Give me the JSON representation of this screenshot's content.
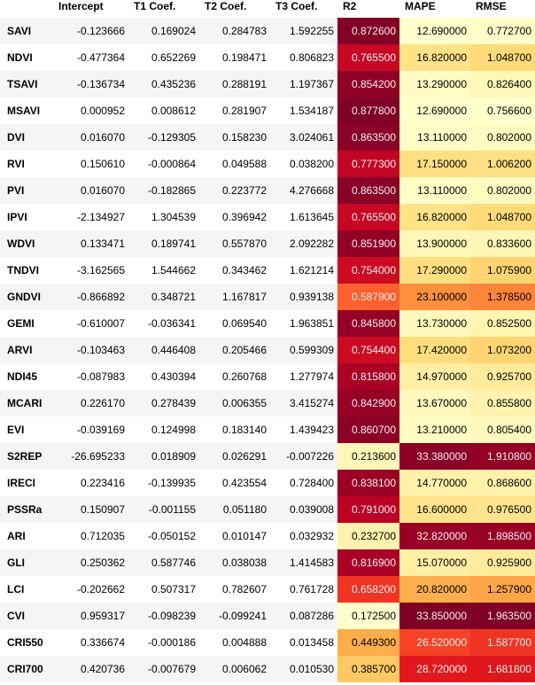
{
  "chart_data": {
    "type": "table",
    "columns": [
      "",
      "Intercept",
      "T1 Coef.",
      "T2 Coef.",
      "T3 Coef.",
      "R2",
      "MAPE",
      "RMSE"
    ],
    "heat_columns": [
      "R2",
      "MAPE",
      "RMSE"
    ],
    "heat_direction": {
      "R2": "high-dark",
      "MAPE": "high-dark",
      "RMSE": "high-dark"
    },
    "rows": [
      {
        "index": "SAVI",
        "values": [
          "-0.123666",
          "0.169024",
          "0.284783",
          "1.592255",
          "0.872600",
          "12.690000",
          "0.772700"
        ]
      },
      {
        "index": "NDVI",
        "values": [
          "-0.477364",
          "0.652269",
          "0.198471",
          "0.806823",
          "0.765500",
          "16.820000",
          "1.048700"
        ]
      },
      {
        "index": "TSAVI",
        "values": [
          "-0.136734",
          "0.435236",
          "0.288191",
          "1.197367",
          "0.854200",
          "13.290000",
          "0.826400"
        ]
      },
      {
        "index": "MSAVI",
        "values": [
          "0.000952",
          "0.008612",
          "0.281907",
          "1.534187",
          "0.877800",
          "12.690000",
          "0.756600"
        ]
      },
      {
        "index": "DVI",
        "values": [
          "0.016070",
          "-0.129305",
          "0.158230",
          "3.024061",
          "0.863500",
          "13.110000",
          "0.802000"
        ]
      },
      {
        "index": "RVI",
        "values": [
          "0.150610",
          "-0.000864",
          "0.049588",
          "0.038200",
          "0.777300",
          "17.150000",
          "1.006200"
        ]
      },
      {
        "index": "PVI",
        "values": [
          "0.016070",
          "-0.182865",
          "0.223772",
          "4.276668",
          "0.863500",
          "13.110000",
          "0.802000"
        ]
      },
      {
        "index": "IPVI",
        "values": [
          "-2.134927",
          "1.304539",
          "0.396942",
          "1.613645",
          "0.765500",
          "16.820000",
          "1.048700"
        ]
      },
      {
        "index": "WDVI",
        "values": [
          "0.133471",
          "0.189741",
          "0.557870",
          "2.092282",
          "0.851900",
          "13.900000",
          "0.833600"
        ]
      },
      {
        "index": "TNDVI",
        "values": [
          "-3.162565",
          "1.544662",
          "0.343462",
          "1.621214",
          "0.754000",
          "17.290000",
          "1.075900"
        ]
      },
      {
        "index": "GNDVI",
        "values": [
          "-0.866892",
          "0.348721",
          "1.167817",
          "0.939138",
          "0.587900",
          "23.100000",
          "1.378500"
        ]
      },
      {
        "index": "GEMI",
        "values": [
          "-0.610007",
          "-0.036341",
          "0.069540",
          "1.963851",
          "0.845800",
          "13.730000",
          "0.852500"
        ]
      },
      {
        "index": "ARVI",
        "values": [
          "-0.103463",
          "0.446408",
          "0.205466",
          "0.599309",
          "0.754400",
          "17.420000",
          "1.073200"
        ]
      },
      {
        "index": "NDI45",
        "values": [
          "-0.087983",
          "0.430394",
          "0.260768",
          "1.277974",
          "0.815800",
          "14.970000",
          "0.925700"
        ]
      },
      {
        "index": "MCARI",
        "values": [
          "0.226170",
          "0.278439",
          "0.006355",
          "3.415274",
          "0.842900",
          "13.670000",
          "0.855800"
        ]
      },
      {
        "index": "EVI",
        "values": [
          "-0.039169",
          "0.124998",
          "0.183140",
          "1.439423",
          "0.860700",
          "13.210000",
          "0.805400"
        ]
      },
      {
        "index": "S2REP",
        "values": [
          "-26.695233",
          "0.018909",
          "0.026291",
          "-0.007226",
          "0.213600",
          "33.380000",
          "1.910800"
        ]
      },
      {
        "index": "IRECI",
        "values": [
          "0.223416",
          "-0.139935",
          "0.423554",
          "0.728400",
          "0.838100",
          "14.770000",
          "0.868600"
        ]
      },
      {
        "index": "PSSRa",
        "values": [
          "0.150907",
          "-0.001155",
          "0.051180",
          "0.039008",
          "0.791000",
          "16.600000",
          "0.976500"
        ]
      },
      {
        "index": "ARI",
        "values": [
          "0.712035",
          "-0.050152",
          "0.010147",
          "0.032932",
          "0.232700",
          "32.820000",
          "1.898500"
        ]
      },
      {
        "index": "GLI",
        "values": [
          "0.250362",
          "0.587746",
          "0.038038",
          "1.414583",
          "0.816900",
          "15.070000",
          "0.925900"
        ]
      },
      {
        "index": "LCI",
        "values": [
          "-0.202662",
          "0.507317",
          "0.782607",
          "0.761728",
          "0.658200",
          "20.820000",
          "1.257900"
        ]
      },
      {
        "index": "CVI",
        "values": [
          "0.959317",
          "-0.098239",
          "-0.099241",
          "0.087286",
          "0.172500",
          "33.850000",
          "1.963500"
        ]
      },
      {
        "index": "CRI550",
        "values": [
          "0.336674",
          "-0.000186",
          "0.004888",
          "0.013458",
          "0.449300",
          "26.520000",
          "1.587700"
        ]
      },
      {
        "index": "CRI700",
        "values": [
          "0.420736",
          "-0.007679",
          "0.006062",
          "0.010530",
          "0.385700",
          "28.720000",
          "1.681800"
        ]
      }
    ],
    "colormap": {
      "name": "YlOrRd",
      "stops": [
        "#ffffcc",
        "#ffeda0",
        "#fed976",
        "#feb24c",
        "#fd8d3c",
        "#fc4e2a",
        "#e31a1c",
        "#bd0026",
        "#800026"
      ]
    }
  }
}
